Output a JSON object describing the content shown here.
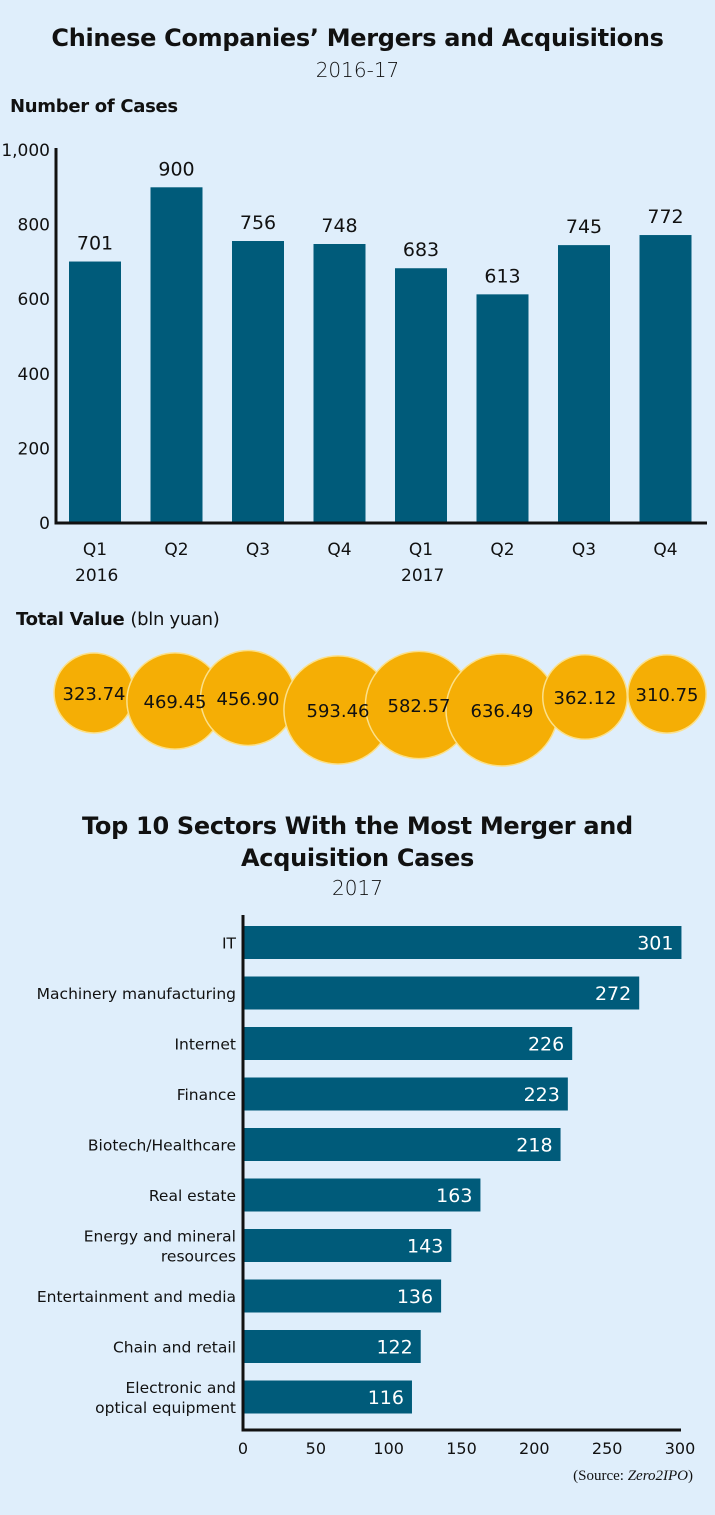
{
  "colors": {
    "background": "#dfeefb",
    "bar": "#005b7a",
    "bubble": "#f5ae05",
    "bubble_stroke": "#fbe08a",
    "axis": "#111111"
  },
  "header": {
    "title": "Chinese Companies’ Mergers and Acquisitions",
    "subtitle": "2016-17"
  },
  "cases_section": {
    "label": "Number of Cases"
  },
  "value_section": {
    "label": "Total Value",
    "unit": "(bln yuan)"
  },
  "sectors_header": {
    "title_line1": "Top 10 Sectors With the Most Merger and",
    "title_line2": "Acquisition Cases",
    "subtitle": "2017"
  },
  "source": {
    "prefix": "(Source: ",
    "name": "Zero2IPO",
    "suffix": ")"
  },
  "chart_data": [
    {
      "type": "bar",
      "title": "Number of Cases",
      "categories": [
        "Q1 2016",
        "Q2 2016",
        "Q3 2016",
        "Q4 2016",
        "Q1 2017",
        "Q2 2017",
        "Q3 2017",
        "Q4 2017"
      ],
      "tick_labels": [
        {
          "quarter": "Q1",
          "year": "2016"
        },
        {
          "quarter": "Q2",
          "year": ""
        },
        {
          "quarter": "Q3",
          "year": ""
        },
        {
          "quarter": "Q4",
          "year": ""
        },
        {
          "quarter": "Q1",
          "year": "2017"
        },
        {
          "quarter": "Q2",
          "year": ""
        },
        {
          "quarter": "Q3",
          "year": ""
        },
        {
          "quarter": "Q4",
          "year": ""
        }
      ],
      "values": [
        701,
        900,
        756,
        748,
        683,
        613,
        745,
        772
      ],
      "xlabel": "",
      "ylabel": "Number of Cases",
      "ylim": [
        0,
        1000
      ],
      "yticks": [
        0,
        200,
        400,
        600,
        800,
        1000
      ],
      "ytick_labels": [
        "0",
        "200",
        "400",
        "600",
        "800",
        "1,000"
      ],
      "grid": false,
      "data_labels": true
    },
    {
      "type": "bubble",
      "title": "Total Value (bln yuan)",
      "categories": [
        "Q1 2016",
        "Q2 2016",
        "Q3 2016",
        "Q4 2016",
        "Q1 2017",
        "Q2 2017",
        "Q3 2017",
        "Q4 2017"
      ],
      "values": [
        323.74,
        469.45,
        456.9,
        593.46,
        582.57,
        636.49,
        362.12,
        310.75
      ],
      "labels": [
        "323.74",
        "469.45",
        "456.90",
        "593.46",
        "582.57",
        "636.49",
        "362.12",
        "310.75"
      ]
    },
    {
      "type": "bar",
      "orientation": "horizontal",
      "title": "Top 10 Sectors With the Most Merger and Acquisition Cases 2017",
      "categories": [
        "IT",
        "Machinery manufacturing",
        "Internet",
        "Finance",
        "Biotech/Healthcare",
        "Real estate",
        "Energy and mineral resources",
        "Entertainment and media",
        "Chain and retail",
        "Electronic and optical equipment"
      ],
      "category_lines": [
        [
          "IT"
        ],
        [
          "Machinery manufacturing"
        ],
        [
          "Internet"
        ],
        [
          "Finance"
        ],
        [
          "Biotech/Healthcare"
        ],
        [
          "Real estate"
        ],
        [
          "Energy and mineral",
          "resources"
        ],
        [
          "Entertainment and media"
        ],
        [
          "Chain and retail"
        ],
        [
          "Electronic and",
          "optical equipment"
        ]
      ],
      "values": [
        301,
        272,
        226,
        223,
        218,
        163,
        143,
        136,
        122,
        116
      ],
      "xlim": [
        0,
        300
      ],
      "xticks": [
        0,
        50,
        100,
        150,
        200,
        250,
        300
      ],
      "xlabel": "",
      "ylabel": "",
      "grid": false,
      "data_labels": true
    }
  ]
}
